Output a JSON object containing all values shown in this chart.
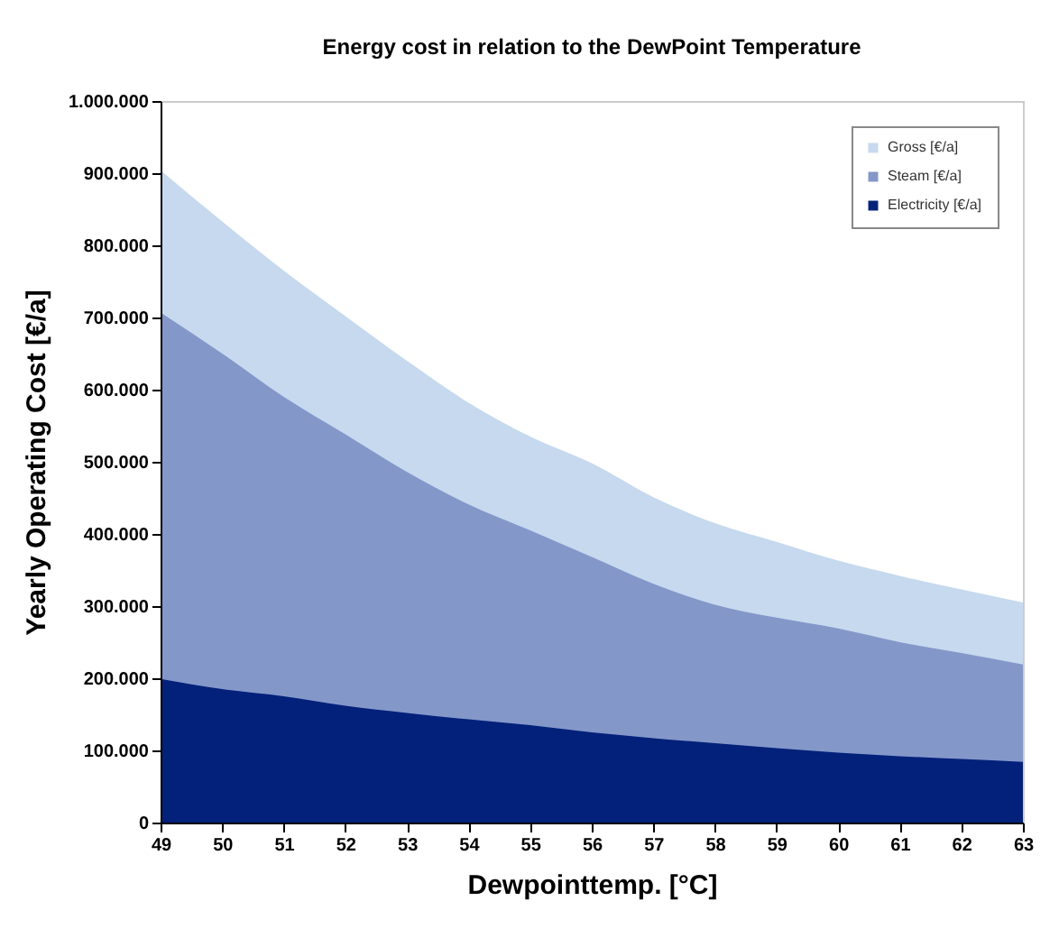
{
  "chart_data": {
    "type": "area",
    "title": "Energy cost in relation to the DewPoint Temperature",
    "xlabel": "Dewpointtemp. [°C]",
    "ylabel": "Yearly Operating Cost [€/a]",
    "x": [
      49,
      50,
      51,
      52,
      53,
      54,
      55,
      56,
      57,
      58,
      59,
      60,
      61,
      62,
      63
    ],
    "series": [
      {
        "name": "Gross [€/a]",
        "color": "#c6d9ee",
        "values": [
          904000,
          833000,
          765000,
          702000,
          640000,
          582000,
          535000,
          498000,
          451000,
          415000,
          389000,
          363000,
          342000,
          323000,
          305000
        ]
      },
      {
        "name": "Steam [€/a]",
        "color": "#8497c9",
        "values": [
          707000,
          650000,
          590000,
          538000,
          486000,
          441000,
          405000,
          368000,
          331000,
          302000,
          284000,
          269000,
          250000,
          235000,
          219000
        ]
      },
      {
        "name": "Electricity [€/a]",
        "color": "#03217a",
        "values": [
          199000,
          185000,
          175000,
          162000,
          152000,
          143000,
          135000,
          125000,
          117000,
          110000,
          103000,
          97000,
          92000,
          88000,
          84000
        ]
      }
    ],
    "xlim": [
      49,
      63
    ],
    "xticks": [
      49,
      50,
      51,
      52,
      53,
      54,
      55,
      56,
      57,
      58,
      59,
      60,
      61,
      62,
      63
    ],
    "ylim": [
      0,
      1000000
    ],
    "yticks": [
      {
        "value": 0,
        "label": "0"
      },
      {
        "value": 100000,
        "label": "100.000"
      },
      {
        "value": 200000,
        "label": "200.000"
      },
      {
        "value": 300000,
        "label": "300.000"
      },
      {
        "value": 400000,
        "label": "400.000"
      },
      {
        "value": 500000,
        "label": "500.000"
      },
      {
        "value": 600000,
        "label": "600.000"
      },
      {
        "value": 700000,
        "label": "700.000"
      },
      {
        "value": 800000,
        "label": "800.000"
      },
      {
        "value": 900000,
        "label": "900.000"
      },
      {
        "value": 1000000,
        "label": "1.000.000"
      }
    ],
    "grid": false,
    "legend": "top right"
  }
}
